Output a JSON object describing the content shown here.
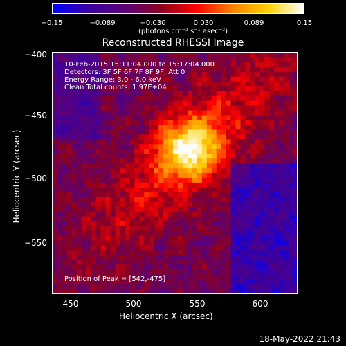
{
  "colorbar": {
    "ticks": [
      "−0.15",
      "−0.089",
      "−0.030",
      "0.030",
      "0.089",
      "0.15"
    ],
    "unit": "(photons cm⁻² s⁻¹ asec⁻²)",
    "colors": [
      "#0000ff",
      "#3a00a0",
      "#5a0078",
      "#8a0020",
      "#ff0000",
      "#ff8000",
      "#ffd000",
      "#ffffff"
    ]
  },
  "chart_data": {
    "type": "heatmap",
    "title": "Reconstructed RHESSI Image",
    "xlabel": "Heliocentric X (arcsec)",
    "ylabel": "Heliocentric Y (arcsec)",
    "xlim": [
      435,
      628
    ],
    "ylim": [
      -595,
      -398
    ],
    "x_ticks": [
      "450",
      "500",
      "550",
      "600"
    ],
    "y_ticks": [
      "−400",
      "−450",
      "−500",
      "−550"
    ],
    "peak": [
      542,
      -475
    ],
    "clim": [
      -0.15,
      0.15
    ]
  },
  "annotations": {
    "time": "10-Feb-2015 15:11:04.000 to 15:17:04.000",
    "detectors": "Detectors: 3F 5F 6F 7F 8F 9F, Att 0",
    "energy": "Energy Range: 3.0 - 6.0 keV",
    "clean": "Clean     Total counts: 1.97E+04",
    "peak_text": "Position of Peak = [542,-475]"
  },
  "footer": {
    "timestamp": "18-May-2022 21:43"
  }
}
